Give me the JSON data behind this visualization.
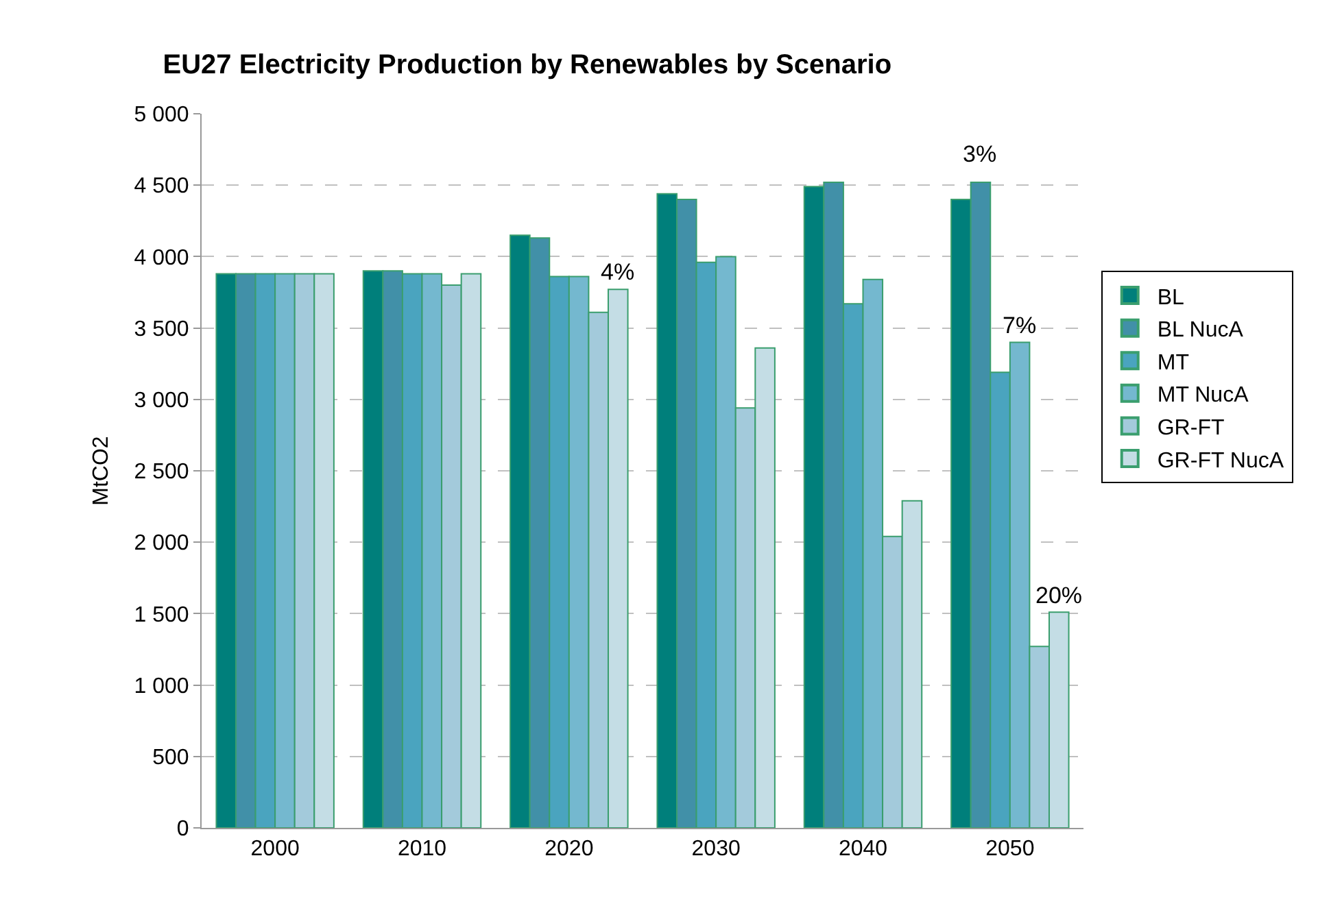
{
  "chart_data": {
    "type": "bar",
    "title": "EU27 Electricity Production by Renewables by Scenario",
    "ylabel": "MtCO2",
    "categories": [
      "2000",
      "2010",
      "2020",
      "2030",
      "2040",
      "2050"
    ],
    "series": [
      {
        "name": "BL",
        "color": "#007f7b",
        "values": [
          3880,
          3900,
          4150,
          4440,
          4490,
          4400
        ]
      },
      {
        "name": "BL NucA",
        "color": "#4190a8",
        "values": [
          3880,
          3900,
          4130,
          4400,
          4520,
          4520
        ]
      },
      {
        "name": "MT",
        "color": "#4aa4bf",
        "values": [
          3880,
          3880,
          3860,
          3960,
          3670,
          3190
        ]
      },
      {
        "name": "MT NucA",
        "color": "#74b8cf",
        "values": [
          3880,
          3880,
          3860,
          4000,
          3840,
          3400
        ]
      },
      {
        "name": "GR-FT",
        "color": "#a3cadb",
        "values": [
          3880,
          3800,
          3610,
          2940,
          2040,
          1270
        ]
      },
      {
        "name": "GR-FT NucA",
        "color": "#c4dde5",
        "values": [
          3880,
          3880,
          3770,
          3360,
          2290,
          1510
        ]
      }
    ],
    "ylim": [
      0,
      5000
    ],
    "yticks": [
      0,
      500,
      {
        "value": 1000,
        "label": "1 000"
      },
      {
        "value": 1500,
        "label": "1 500"
      },
      {
        "value": 2000,
        "label": "2 000"
      },
      {
        "value": 2500,
        "label": "2 500"
      },
      {
        "value": 3000,
        "label": "3 000"
      },
      {
        "value": 3500,
        "label": "3 500"
      },
      {
        "value": 4000,
        "label": "4 000"
      },
      {
        "value": 4500,
        "label": "4 500"
      },
      {
        "value": 5000,
        "label": "5 000"
      }
    ],
    "grid": "y",
    "legend": "right",
    "annotations": [
      {
        "text": "4%",
        "x": "2020",
        "y": 3770
      },
      "3%",
      {
        "text": "7%",
        "x": "2050",
        "y": 3400
      },
      {
        "text": "20%",
        "x": "2050",
        "y": 1510
      }
    ]
  }
}
